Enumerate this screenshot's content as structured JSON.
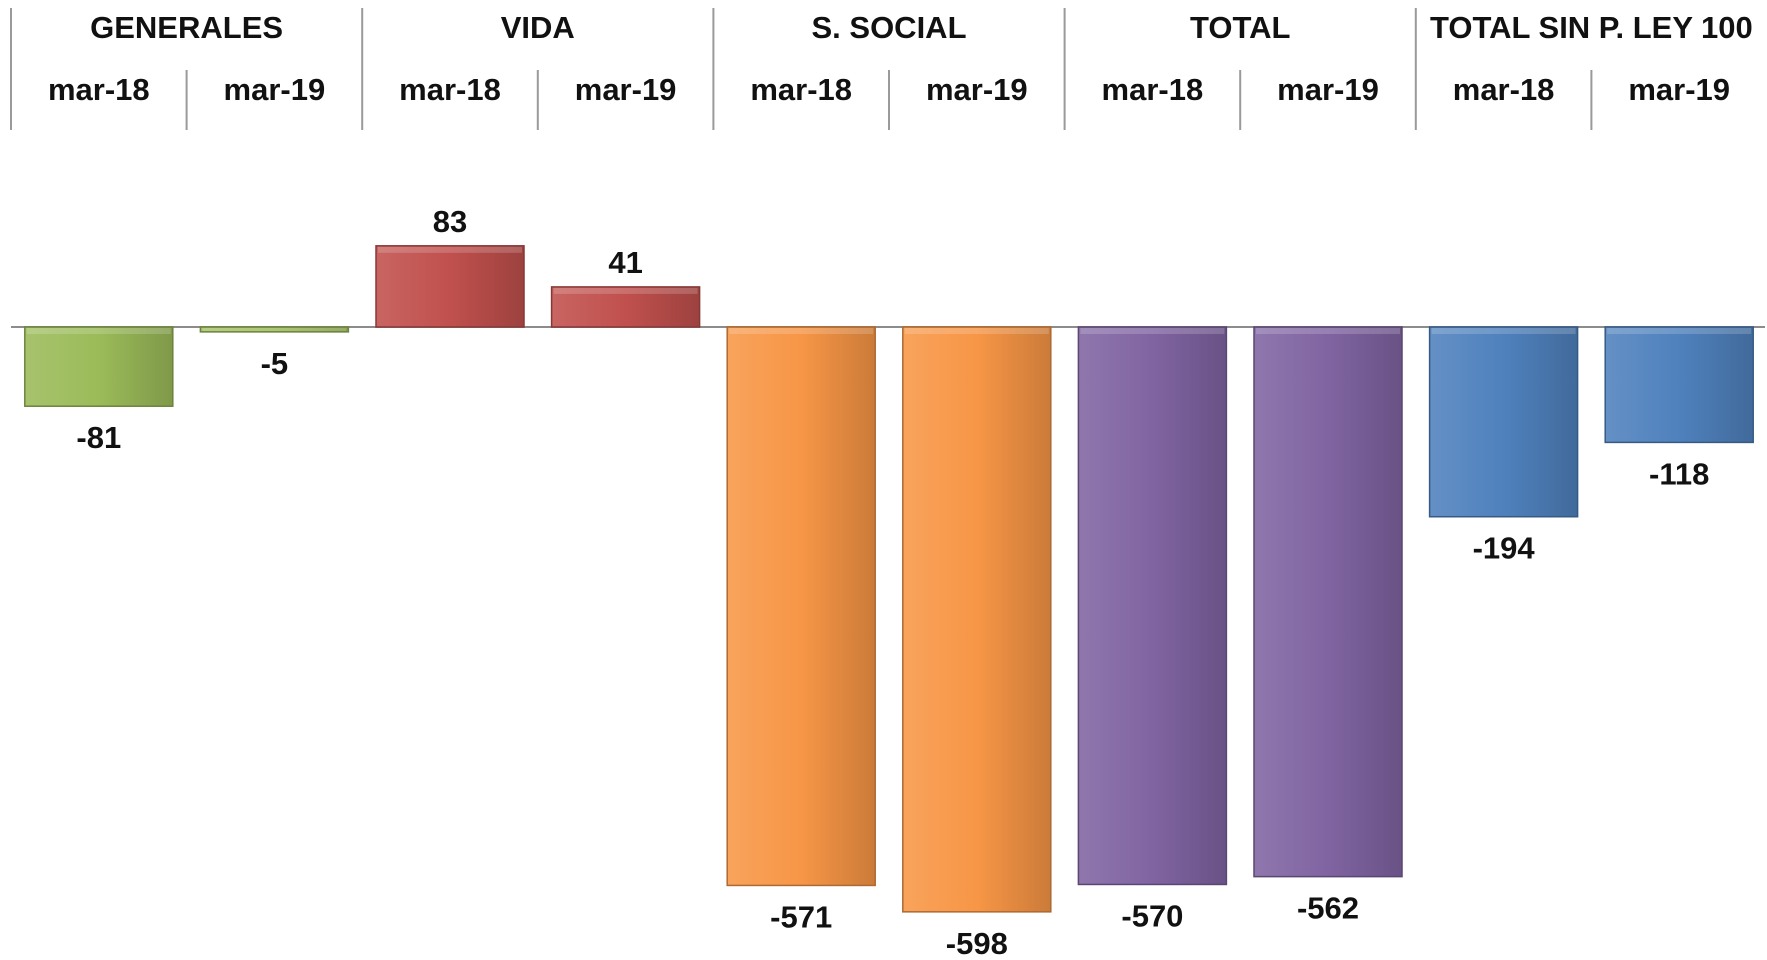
{
  "chart_data": {
    "type": "bar",
    "title": "",
    "xlabel": "",
    "ylabel": "",
    "groups": [
      "GENERALES",
      "VIDA",
      "S. SOCIAL",
      "TOTAL",
      "TOTAL SIN P. LEY 100"
    ],
    "periods": [
      "mar-18",
      "mar-19"
    ],
    "series": [
      {
        "group": "GENERALES",
        "values": [
          -81,
          -5
        ],
        "color": "#9BBB59"
      },
      {
        "group": "VIDA",
        "values": [
          83,
          41
        ],
        "color": "#C0504D"
      },
      {
        "group": "S. SOCIAL",
        "values": [
          -571,
          -598
        ],
        "color": "#F79646"
      },
      {
        "group": "TOTAL",
        "values": [
          -570,
          -562
        ],
        "color": "#8064A2"
      },
      {
        "group": "TOTAL SIN P. LEY 100",
        "values": [
          -194,
          -118
        ],
        "color": "#4F81BD"
      }
    ],
    "ylim": [
      -620,
      120
    ],
    "grid": false,
    "legend": "none"
  }
}
